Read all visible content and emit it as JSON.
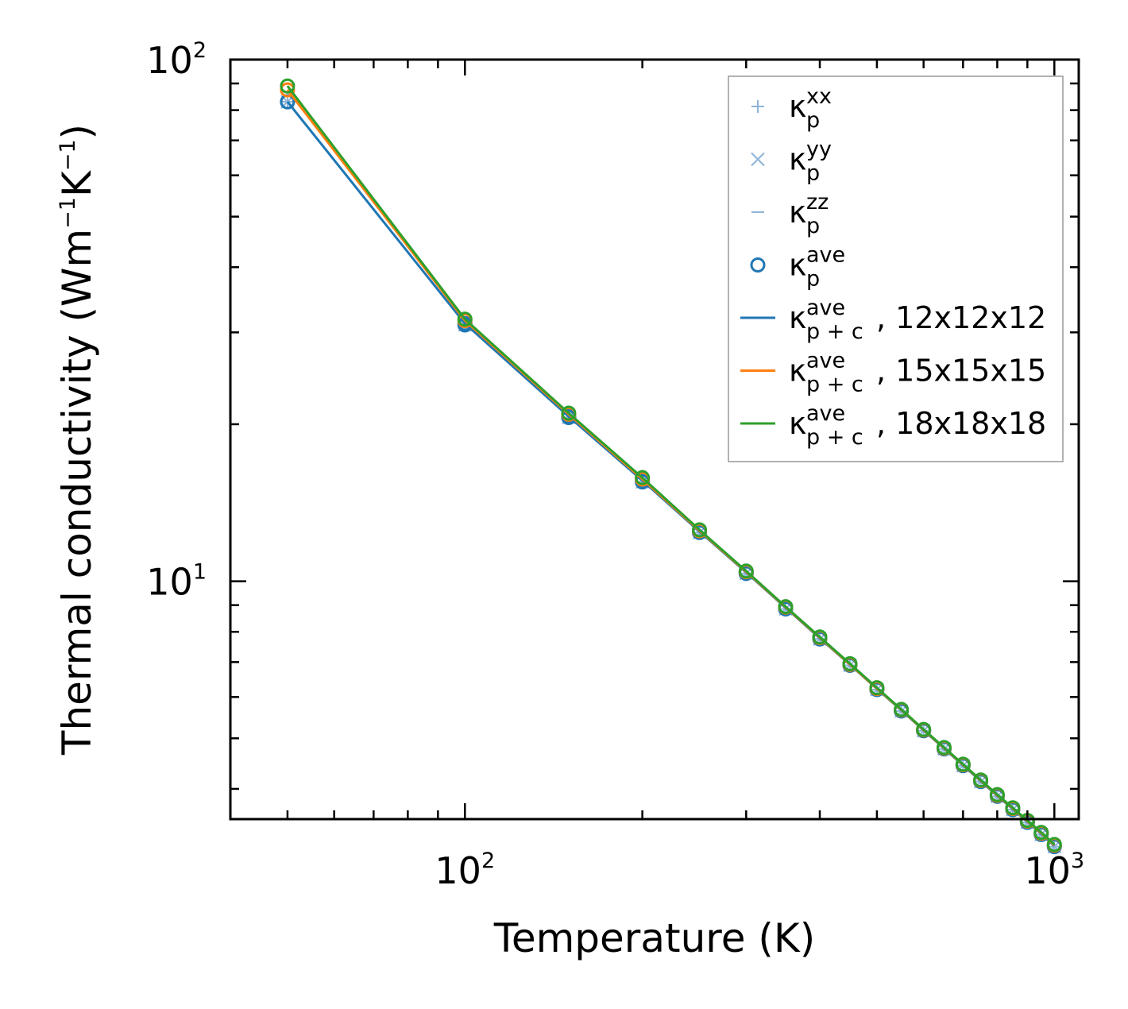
{
  "chart_data": {
    "type": "line",
    "xscale": "log",
    "yscale": "log",
    "xlabel": "Temperature (K)",
    "ylabel": {
      "prefix": "Thermal conductivity (Wm",
      "exp1": "−1",
      "mid": "K",
      "exp2": "−1",
      "suffix": ")"
    },
    "xlim": [
      40,
      1100
    ],
    "ylim": [
      3.5,
      100
    ],
    "x_ticks": [
      {
        "value": 100,
        "base": "10",
        "exp": "2"
      },
      {
        "value": 1000,
        "base": "10",
        "exp": "3"
      }
    ],
    "y_ticks": [
      {
        "value": 10,
        "base": "10",
        "exp": "1"
      },
      {
        "value": 100,
        "base": "10",
        "exp": "2"
      }
    ],
    "x": [
      50,
      100,
      150,
      200,
      250,
      300,
      350,
      400,
      450,
      500,
      550,
      600,
      650,
      700,
      750,
      800,
      850,
      900,
      950,
      1000
    ],
    "series": [
      {
        "name": "κp^xx",
        "label_base": "κ",
        "label_sub": "p",
        "label_sup": "xx",
        "label_tail": "",
        "marker": "plus",
        "line": false,
        "color": "#8fb5d8",
        "values": [
          83.0,
          31.0,
          20.6,
          15.5,
          12.4,
          10.35,
          8.85,
          7.75,
          6.9,
          6.2,
          5.64,
          5.17,
          4.77,
          4.43,
          4.13,
          3.87,
          3.65,
          3.45,
          3.27,
          3.1
        ]
      },
      {
        "name": "κp^yy",
        "label_base": "κ",
        "label_sub": "p",
        "label_sup": "yy",
        "label_tail": "",
        "marker": "x",
        "line": false,
        "color": "#8fb5d8",
        "values": [
          83.0,
          31.0,
          20.6,
          15.5,
          12.4,
          10.35,
          8.85,
          7.75,
          6.9,
          6.2,
          5.64,
          5.17,
          4.77,
          4.43,
          4.13,
          3.87,
          3.65,
          3.45,
          3.27,
          3.1
        ]
      },
      {
        "name": "κp^zz",
        "label_base": "κ",
        "label_sub": "p",
        "label_sup": "zz",
        "label_tail": "",
        "marker": "minus",
        "line": false,
        "color": "#8fb5d8",
        "values": [
          83.0,
          31.0,
          20.6,
          15.5,
          12.4,
          10.35,
          8.85,
          7.75,
          6.9,
          6.2,
          5.64,
          5.17,
          4.77,
          4.43,
          4.13,
          3.87,
          3.65,
          3.45,
          3.27,
          3.1
        ]
      },
      {
        "name": "κp^ave",
        "label_base": "κ",
        "label_sub": "p",
        "label_sup": "ave",
        "label_tail": "",
        "marker": "circle",
        "line": false,
        "color": "#1f77b4",
        "values": [
          83.0,
          31.0,
          20.6,
          15.5,
          12.4,
          10.35,
          8.85,
          7.75,
          6.9,
          6.2,
          5.64,
          5.17,
          4.77,
          4.43,
          4.13,
          3.87,
          3.65,
          3.45,
          3.27,
          3.1
        ]
      },
      {
        "name": "κp+c^ave, 12x12x12",
        "label_base": "κ",
        "label_sub": "p + c",
        "label_sup": "ave",
        "label_tail": ", 12x12x12",
        "marker": "circle",
        "line": true,
        "color": "#1f77b4",
        "values": [
          83.0,
          31.2,
          20.7,
          15.6,
          12.45,
          10.4,
          8.9,
          7.78,
          6.92,
          6.22,
          5.66,
          5.18,
          4.78,
          4.44,
          4.14,
          3.88,
          3.66,
          3.46,
          3.28,
          3.11
        ]
      },
      {
        "name": "κp+c^ave, 15x15x15",
        "label_base": "κ",
        "label_sub": "p + c",
        "label_sup": "ave",
        "label_tail": ", 15x15x15",
        "marker": "circle",
        "line": true,
        "color": "#ff7f0e",
        "values": [
          87.5,
          31.6,
          20.9,
          15.7,
          12.5,
          10.43,
          8.92,
          7.8,
          6.93,
          6.23,
          5.67,
          5.19,
          4.79,
          4.45,
          4.15,
          3.89,
          3.67,
          3.47,
          3.29,
          3.12
        ]
      },
      {
        "name": "κp+c^ave, 18x18x18",
        "label_base": "κ",
        "label_sub": "p + c",
        "label_sup": "ave",
        "label_tail": ", 18x18x18",
        "marker": "circle",
        "line": true,
        "color": "#2ca02c",
        "values": [
          89.0,
          31.8,
          21.0,
          15.8,
          12.55,
          10.46,
          8.94,
          7.82,
          6.95,
          6.25,
          5.68,
          5.2,
          4.8,
          4.46,
          4.16,
          3.9,
          3.68,
          3.48,
          3.3,
          3.13
        ]
      }
    ],
    "legend_position": "top-right",
    "grid": false
  }
}
